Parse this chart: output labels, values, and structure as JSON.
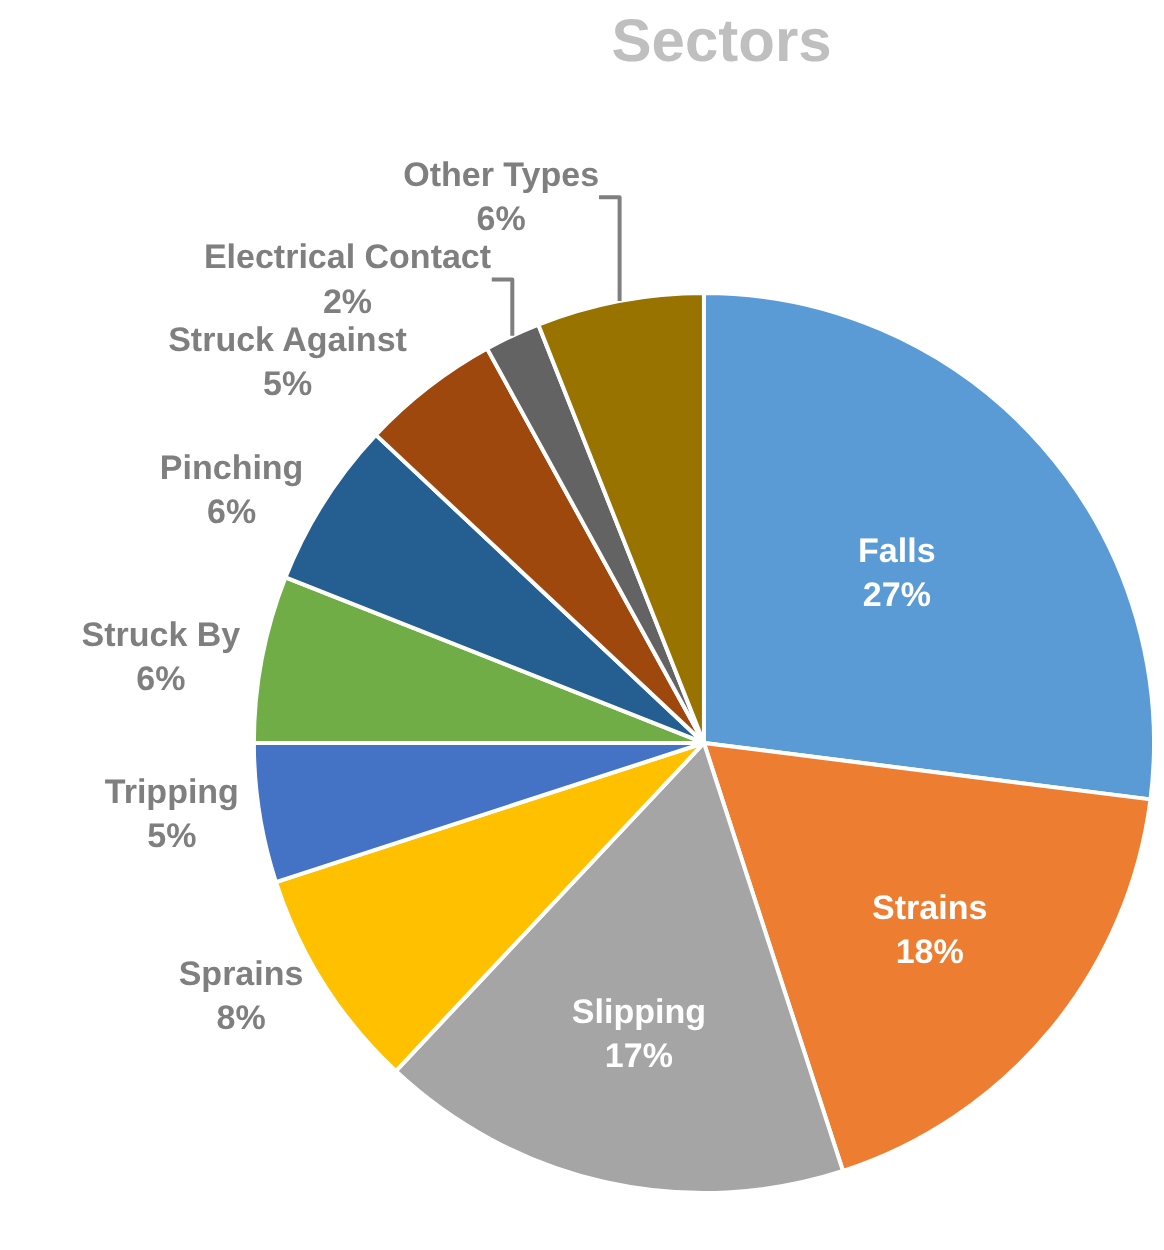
{
  "chart_data": {
    "type": "pie",
    "title": "Sectors",
    "categories": [
      "Falls",
      "Strains",
      "Slipping",
      "Sprains",
      "Tripping",
      "Struck By",
      "Pinching",
      "Struck Against",
      "Electrical Contact",
      "Other Types"
    ],
    "values": [
      27,
      18,
      17,
      8,
      5,
      6,
      6,
      5,
      2,
      6
    ],
    "value_labels": [
      "27%",
      "18%",
      "17%",
      "8%",
      "5%",
      "6%",
      "6%",
      "5%",
      "2%",
      "6%"
    ],
    "colors": [
      "#5b9bd5",
      "#ed7d31",
      "#a5a5a5",
      "#ffc000",
      "#4472c4",
      "#70ad47",
      "#255e91",
      "#9e480e",
      "#636363",
      "#997300"
    ],
    "legend": false
  }
}
